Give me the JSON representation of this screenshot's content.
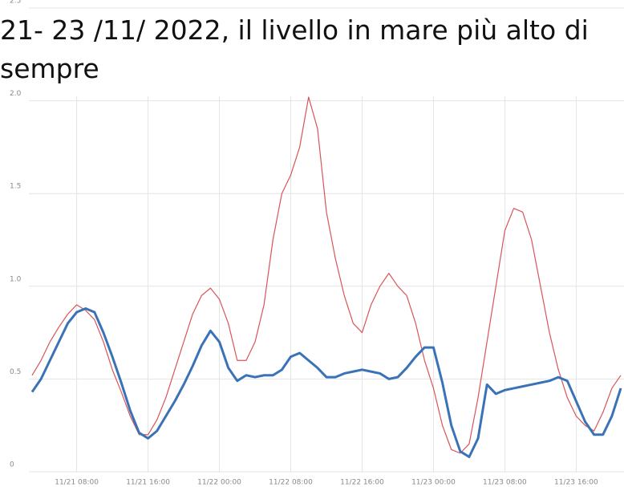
{
  "chart_data": {
    "type": "line",
    "title": "21- 23 /11/ 2022, il livello in mare più alto di sempre",
    "x": [
      "11/21 03:00",
      "11/21 04:00",
      "11/21 05:00",
      "11/21 06:00",
      "11/21 07:00",
      "11/21 08:00",
      "11/21 09:00",
      "11/21 10:00",
      "11/21 11:00",
      "11/21 12:00",
      "11/21 13:00",
      "11/21 14:00",
      "11/21 15:00",
      "11/21 16:00",
      "11/21 17:00",
      "11/21 18:00",
      "11/21 19:00",
      "11/21 20:00",
      "11/21 21:00",
      "11/21 22:00",
      "11/21 23:00",
      "11/22 00:00",
      "11/22 01:00",
      "11/22 02:00",
      "11/22 03:00",
      "11/22 04:00",
      "11/22 05:00",
      "11/22 06:00",
      "11/22 07:00",
      "11/22 08:00",
      "11/22 09:00",
      "11/22 10:00",
      "11/22 11:00",
      "11/22 12:00",
      "11/22 13:00",
      "11/22 14:00",
      "11/22 15:00",
      "11/22 16:00",
      "11/22 17:00",
      "11/22 18:00",
      "11/22 19:00",
      "11/22 20:00",
      "11/22 21:00",
      "11/22 22:00",
      "11/22 23:00",
      "11/23 00:00",
      "11/23 01:00",
      "11/23 02:00",
      "11/23 03:00",
      "11/23 04:00",
      "11/23 05:00",
      "11/23 06:00",
      "11/23 07:00",
      "11/23 08:00",
      "11/23 09:00",
      "11/23 10:00",
      "11/23 11:00",
      "11/23 12:00",
      "11/23 13:00",
      "11/23 14:00",
      "11/23 15:00",
      "11/23 16:00",
      "11/23 17:00",
      "11/23 18:00",
      "11/23 19:00",
      "11/23 20:00",
      "11/23 21:00"
    ],
    "series": [
      {
        "color": "#d9545a",
        "values": [
          0.52,
          0.6,
          0.7,
          0.78,
          0.85,
          0.9,
          0.87,
          0.82,
          0.7,
          0.55,
          0.43,
          0.3,
          0.2,
          0.2,
          0.28,
          0.4,
          0.55,
          0.7,
          0.85,
          0.95,
          0.99,
          0.93,
          0.8,
          0.6,
          0.6,
          0.7,
          0.9,
          1.25,
          1.5,
          1.6,
          1.75,
          2.02,
          1.85,
          1.4,
          1.15,
          0.95,
          0.8,
          0.75,
          0.9,
          1.0,
          1.07,
          1.0,
          0.95,
          0.8,
          0.6,
          0.45,
          0.25,
          0.12,
          0.1,
          0.15,
          0.4,
          0.7,
          1.0,
          1.3,
          1.42,
          1.4,
          1.25,
          1.0,
          0.75,
          0.55,
          0.4,
          0.3,
          0.25,
          0.22,
          0.32,
          0.45,
          0.52
        ]
      },
      {
        "color": "#3a72b8",
        "values": [
          0.43,
          0.5,
          0.6,
          0.7,
          0.8,
          0.86,
          0.88,
          0.86,
          0.75,
          0.62,
          0.48,
          0.33,
          0.21,
          0.18,
          0.22,
          0.3,
          0.38,
          0.47,
          0.57,
          0.68,
          0.76,
          0.7,
          0.56,
          0.49,
          0.52,
          0.51,
          0.52,
          0.52,
          0.55,
          0.62,
          0.64,
          0.6,
          0.56,
          0.51,
          0.51,
          0.53,
          0.54,
          0.55,
          0.54,
          0.53,
          0.5,
          0.51,
          0.56,
          0.62,
          0.67,
          0.67,
          0.48,
          0.25,
          0.11,
          0.08,
          0.18,
          0.47,
          0.42,
          0.44,
          0.45,
          0.46,
          0.47,
          0.48,
          0.49,
          0.51,
          0.49,
          0.38,
          0.27,
          0.2,
          0.2,
          0.3,
          0.45
        ]
      }
    ],
    "xlim": [
      "11/21 03:00",
      "11/23 21:00"
    ],
    "xticks": [
      "11/21 08:00",
      "11/21 16:00",
      "11/22 00:00",
      "11/22 08:00",
      "11/22 16:00",
      "11/23 00:00",
      "11/23 08:00",
      "11/23 16:00"
    ],
    "ylim": [
      0,
      2.5
    ],
    "yticks": [
      0,
      0.5,
      {
        "value": 1,
        "label": "1.0"
      },
      1.5,
      {
        "value": 2,
        "label": "2.0"
      },
      2.5
    ],
    "grid": true
  }
}
